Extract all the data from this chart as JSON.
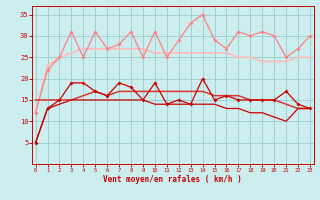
{
  "x": [
    0,
    1,
    2,
    3,
    4,
    5,
    6,
    7,
    8,
    9,
    10,
    11,
    12,
    13,
    14,
    15,
    16,
    17,
    18,
    19,
    20,
    21,
    22,
    23
  ],
  "rafales_spiky": [
    12,
    22,
    25,
    31,
    25,
    31,
    27,
    28,
    31,
    25,
    31,
    25,
    29,
    33,
    35,
    29,
    27,
    31,
    30,
    31,
    30,
    25,
    27,
    30
  ],
  "rafales_smooth": [
    12,
    23,
    25,
    26,
    27,
    27,
    27,
    27,
    27,
    27,
    26,
    26,
    26,
    26,
    26,
    26,
    26,
    25,
    25,
    24,
    24,
    24,
    25,
    25
  ],
  "vent_spiky": [
    5,
    13,
    15,
    19,
    19,
    17,
    16,
    19,
    18,
    15,
    19,
    14,
    15,
    14,
    20,
    15,
    16,
    15,
    15,
    15,
    15,
    17,
    14,
    13
  ],
  "vent_smooth": [
    5,
    13,
    14,
    15,
    15,
    15,
    15,
    15,
    15,
    15,
    14,
    14,
    14,
    14,
    14,
    14,
    13,
    13,
    12,
    12,
    11,
    10,
    13,
    13
  ],
  "vent_mid": [
    15,
    15,
    15,
    15,
    16,
    17,
    16,
    17,
    17,
    17,
    17,
    17,
    17,
    17,
    17,
    16,
    16,
    16,
    15,
    15,
    15,
    14,
    13,
    13
  ],
  "color_rafales_spiky": "#ff8080",
  "color_rafales_smooth": "#ffbbbb",
  "color_vent_spiky": "#cc0000",
  "color_vent_smooth": "#cc0000",
  "color_vent_mid": "#dd3333",
  "xlabel": "Vent moyen/en rafales ( km/h )",
  "ylim": [
    0,
    37
  ],
  "ytick_vals": [
    5,
    10,
    15,
    20,
    25,
    30,
    35
  ],
  "ytick_labels": [
    "5",
    "10",
    "15",
    "20",
    "25",
    "30",
    "35"
  ],
  "xlim": [
    -0.3,
    23.3
  ],
  "bg_color": "#cceeee",
  "grid_color": "#99cccc"
}
